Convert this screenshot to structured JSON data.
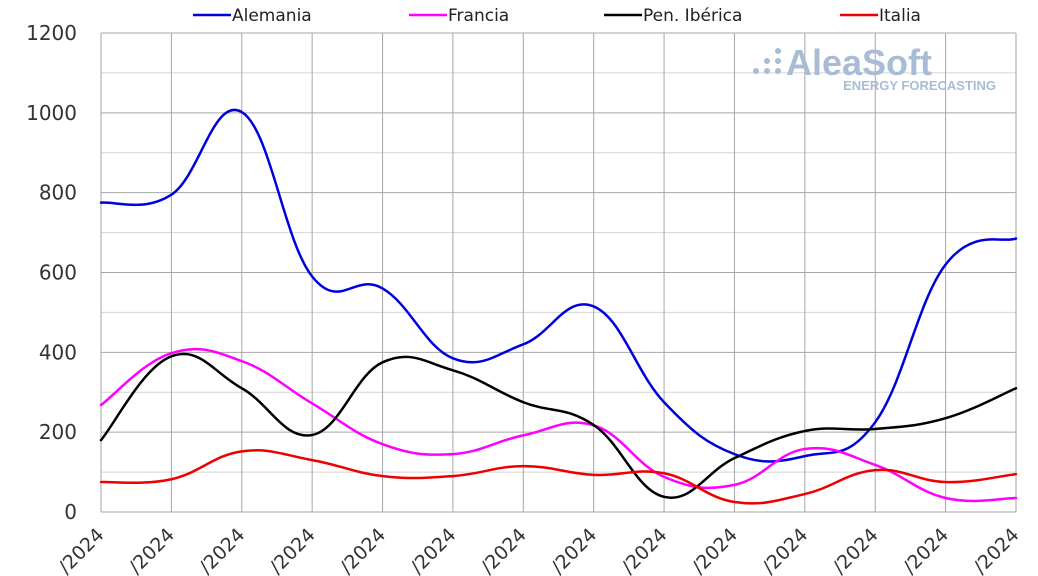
{
  "chart_data": {
    "type": "line",
    "title": "",
    "xlabel": "",
    "ylabel": "",
    "ylim": [
      0,
      1200
    ],
    "yticks": [
      0,
      200,
      400,
      600,
      800,
      1000,
      1200
    ],
    "grid": true,
    "legend_position": "top",
    "x": [
      "/2024",
      "/2024",
      "/2024",
      "/2024",
      "/2024",
      "/2024",
      "/2024",
      "/2024",
      "/2024",
      "/2024",
      "/2024",
      "/2024",
      "/2024",
      "/2024"
    ],
    "series": [
      {
        "name": "Alemania",
        "color": "#0000dd",
        "values": [
          775,
          795,
          1002,
          590,
          560,
          385,
          420,
          515,
          275,
          145,
          140,
          225,
          620,
          685
        ]
      },
      {
        "name": "Francia",
        "color": "#ff00ff",
        "values": [
          268,
          398,
          378,
          272,
          170,
          145,
          192,
          217,
          88,
          68,
          158,
          118,
          35,
          35
        ]
      },
      {
        "name": "Pen. Ibérica",
        "color": "#000000",
        "values": [
          180,
          390,
          310,
          193,
          375,
          355,
          275,
          218,
          38,
          135,
          203,
          208,
          235,
          310
        ]
      },
      {
        "name": "Italia",
        "color": "#ee0000",
        "values": [
          75,
          82,
          152,
          130,
          90,
          90,
          115,
          93,
          97,
          25,
          45,
          105,
          75,
          95
        ]
      }
    ]
  },
  "logo": {
    "name": "AleaSoft",
    "tagline": "ENERGY FORECASTING"
  }
}
